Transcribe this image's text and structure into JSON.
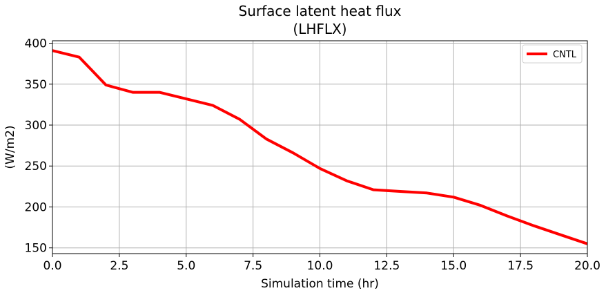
{
  "chart_data": {
    "type": "line",
    "title": "Surface latent heat flux",
    "subtitle": "(LHFLX)",
    "xlabel": "Simulation time (hr)",
    "ylabel": "(W/m2)",
    "xlim": [
      0,
      20
    ],
    "ylim": [
      143,
      403
    ],
    "xticks": [
      0,
      2.5,
      5,
      7.5,
      10,
      12.5,
      15,
      17.5,
      20
    ],
    "xtick_labels": [
      "0.0",
      "2.5",
      "5.0",
      "7.5",
      "10.0",
      "12.5",
      "15.0",
      "17.5",
      "20.0"
    ],
    "yticks": [
      150,
      200,
      250,
      300,
      350,
      400
    ],
    "ytick_labels": [
      "150",
      "200",
      "250",
      "300",
      "350",
      "400"
    ],
    "grid": true,
    "legend_position": "top-right",
    "series": [
      {
        "name": "CNTL",
        "color": "#ff0000",
        "x": [
          0,
          1,
          2,
          3,
          4,
          5,
          6,
          7,
          8,
          9,
          10,
          11,
          12,
          13,
          14,
          15,
          16,
          17,
          18,
          19,
          20
        ],
        "y": [
          391,
          383,
          349,
          340,
          340,
          332,
          324,
          307,
          283,
          266,
          247,
          232,
          221,
          219,
          217,
          212,
          202,
          189,
          177,
          166,
          155
        ]
      }
    ]
  }
}
